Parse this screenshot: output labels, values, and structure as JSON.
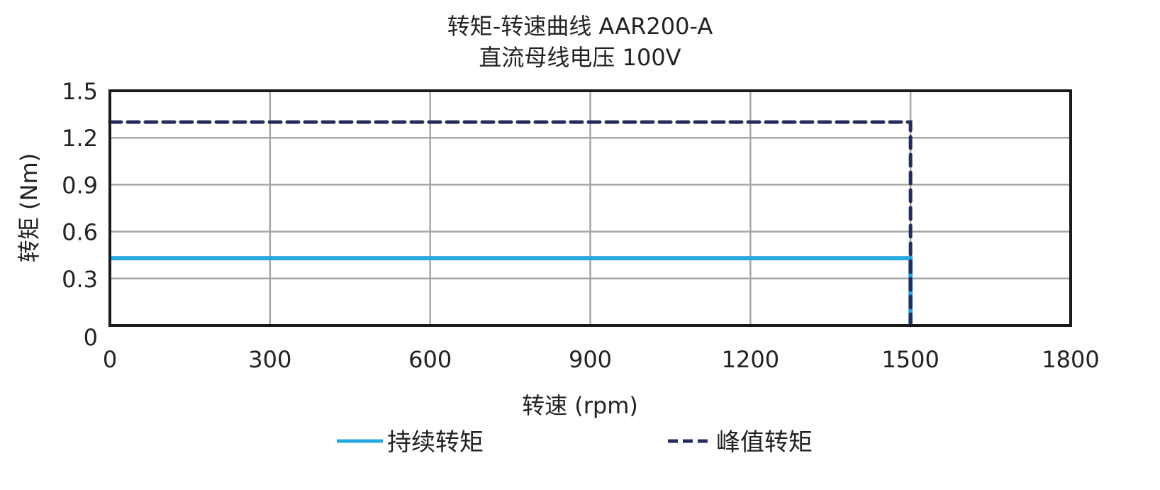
{
  "chart_data": {
    "type": "line",
    "title": "转矩-转速曲线 AAR200-A",
    "subtitle": "直流母线电压 100V",
    "xlabel": "转速 (rpm)",
    "ylabel": "转矩 (Nm)",
    "xlim": [
      0,
      1800
    ],
    "ylim": [
      0,
      1.5
    ],
    "x_ticks": [
      0,
      300,
      600,
      900,
      1200,
      1500,
      1800
    ],
    "y_ticks": [
      0,
      0.3,
      0.6,
      0.9,
      1.2,
      1.5
    ],
    "x_tick_labels": [
      "0",
      "300",
      "600",
      "900",
      "1200",
      "1500",
      "1800"
    ],
    "y_tick_labels": [
      "0",
      "0.3",
      "0.6",
      "0.9",
      "1.2",
      "1.5"
    ],
    "grid": true,
    "legend_position": "bottom",
    "series": [
      {
        "name": "持续转矩",
        "style": "solid",
        "color": "#29a8e0",
        "x": [
          0,
          1500,
          1500
        ],
        "y": [
          0.43,
          0.43,
          0
        ]
      },
      {
        "name": "峰值转矩",
        "style": "dashed",
        "color": "#272d5a",
        "x": [
          0,
          1500,
          1500
        ],
        "y": [
          1.3,
          1.3,
          0
        ]
      }
    ]
  },
  "colors": {
    "continuous": "#29a8e0",
    "peak": "#272d5a",
    "grid": "#a6a6a6",
    "frame": "#1a1a1a"
  }
}
